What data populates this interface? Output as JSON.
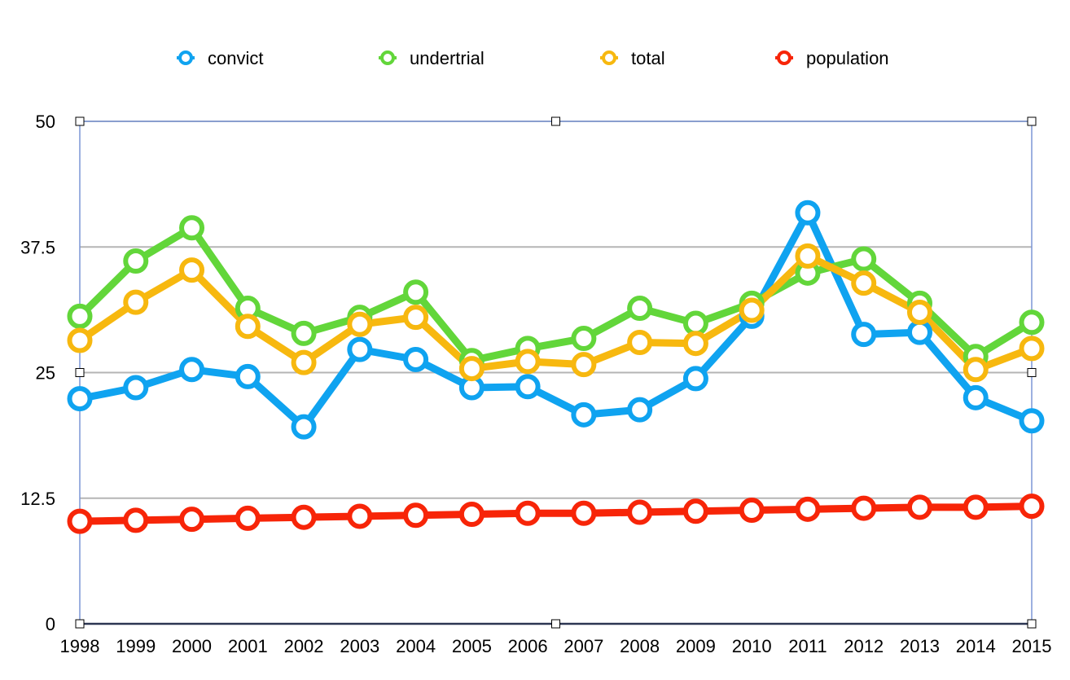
{
  "colors": {
    "convict": "#0fa3f0",
    "undertrial": "#62d63a",
    "total": "#f7b80f",
    "population": "#f72508",
    "grid": "#b5b5b5",
    "frame": "#7b96d6",
    "axis": "#2c3652"
  },
  "chart_data": {
    "type": "line",
    "title": "",
    "xlabel": "",
    "ylabel": "",
    "categories": [
      "1998",
      "1999",
      "2000",
      "2001",
      "2002",
      "2003",
      "2004",
      "2005",
      "2006",
      "2007",
      "2008",
      "2009",
      "2010",
      "2011",
      "2012",
      "2013",
      "2014",
      "2015"
    ],
    "y_ticks": [
      "0",
      "12.5",
      "25",
      "37.5",
      "50"
    ],
    "y_tick_values": [
      0,
      12.5,
      25,
      37.5,
      50
    ],
    "ylim": [
      0,
      50
    ],
    "grid": true,
    "legend": "top",
    "series": [
      {
        "name": "convict",
        "color_key": "convict",
        "values": [
          22.4,
          23.5,
          25.3,
          24.6,
          19.6,
          27.3,
          26.3,
          23.5,
          23.6,
          20.8,
          21.3,
          24.4,
          30.6,
          40.9,
          28.8,
          29.0,
          22.5,
          20.2
        ]
      },
      {
        "name": "undertrial",
        "color_key": "undertrial",
        "values": [
          30.6,
          36.1,
          39.4,
          31.4,
          28.9,
          30.5,
          33.0,
          26.2,
          27.4,
          28.4,
          31.4,
          29.9,
          31.9,
          34.9,
          36.3,
          31.9,
          26.6,
          30.0
        ]
      },
      {
        "name": "total",
        "color_key": "total",
        "values": [
          28.2,
          32.0,
          35.2,
          29.6,
          26.0,
          29.8,
          30.5,
          25.4,
          26.1,
          25.8,
          28.0,
          27.9,
          31.2,
          36.6,
          33.9,
          31.0,
          25.3,
          27.4
        ]
      },
      {
        "name": "population",
        "color_key": "population",
        "values": [
          10.2,
          10.3,
          10.4,
          10.5,
          10.6,
          10.7,
          10.8,
          10.9,
          11.0,
          11.0,
          11.1,
          11.2,
          11.3,
          11.4,
          11.5,
          11.6,
          11.6,
          11.7
        ]
      }
    ]
  }
}
